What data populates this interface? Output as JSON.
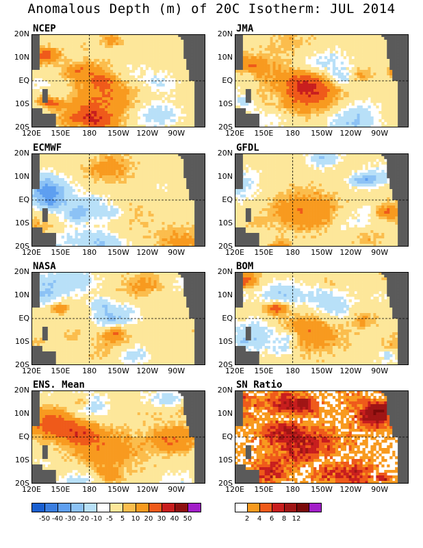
{
  "title": "Anomalous Depth (m) of 20C Isotherm: JUL 2014",
  "panels": [
    {
      "label": "NCEP",
      "seed": 11
    },
    {
      "label": "JMA",
      "seed": 23
    },
    {
      "label": "ECMWF",
      "seed": 37
    },
    {
      "label": "GFDL",
      "seed": 41
    },
    {
      "label": "NASA",
      "seed": 53
    },
    {
      "label": "BOM",
      "seed": 67
    },
    {
      "label": "ENS. Mean",
      "seed": 79
    },
    {
      "label": "SN Ratio",
      "seed": 97,
      "type": "ratio"
    }
  ],
  "axes": {
    "lat_labels": [
      "20N",
      "10N",
      "EQ",
      "10S",
      "20S"
    ],
    "lon_labels": [
      "120E",
      "150E",
      "180",
      "150W",
      "120W",
      "90W"
    ]
  },
  "anomaly_colorbar": {
    "colors": [
      "#1a5fd0",
      "#3a7ee0",
      "#5e9ff0",
      "#8cc2f5",
      "#b8e0f8",
      "#ffffff",
      "#fde79a",
      "#fbbd4d",
      "#f89a1f",
      "#ef5a1a",
      "#c81e1e",
      "#8e1010",
      "#a21ec8"
    ],
    "labels": [
      "-50",
      "-40",
      "-30",
      "-20",
      "-10",
      "-5",
      "5",
      "10",
      "20",
      "30",
      "40",
      "50"
    ]
  },
  "ratio_colorbar": {
    "colors": [
      "#ffffff",
      "#f89a1f",
      "#ef5a1a",
      "#c81e1e",
      "#a01515",
      "#7a0a0a",
      "#a21ec8"
    ],
    "labels": [
      "2",
      "4",
      "6",
      "8",
      "12"
    ]
  },
  "land_color": "#5a5a5a"
}
